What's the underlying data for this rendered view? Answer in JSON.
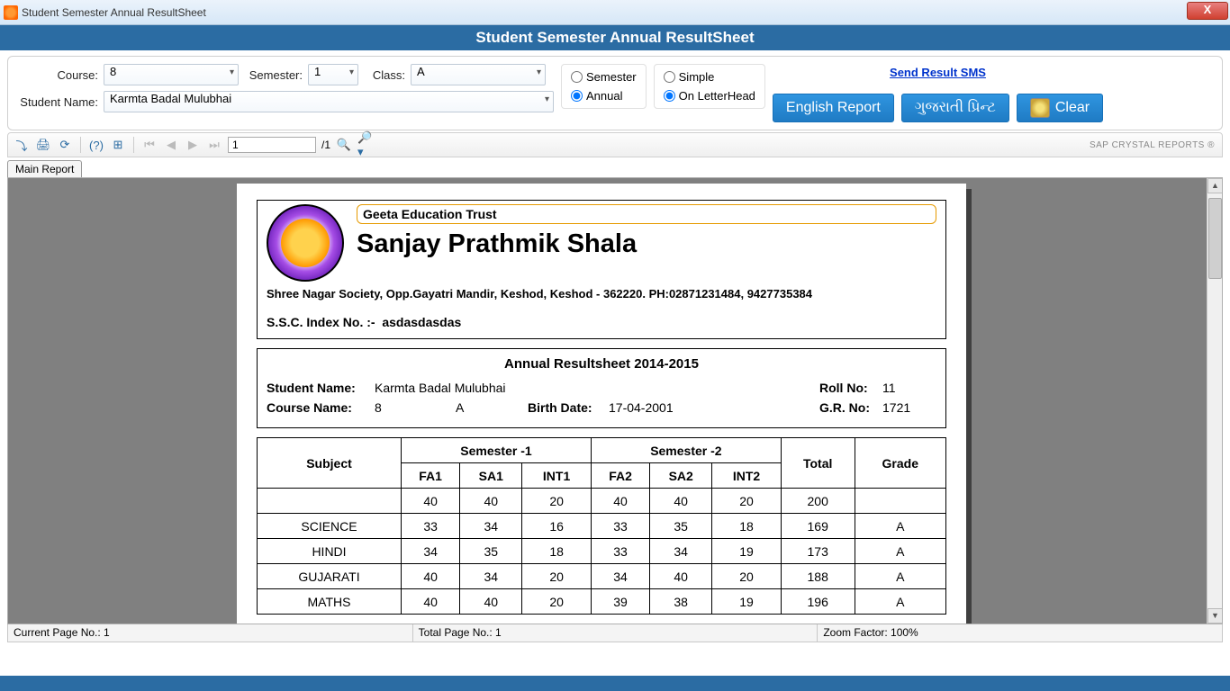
{
  "window": {
    "title": "Student Semester Annual ResultSheet"
  },
  "header": {
    "title": "Student Semester Annual ResultSheet"
  },
  "filters": {
    "course_label": "Course:",
    "course_value": "8",
    "semester_label": "Semester:",
    "semester_value": "1",
    "class_label": "Class:",
    "class_value": "A",
    "student_label": "Student Name:",
    "student_value": "Karmta Badal Mulubhai",
    "period": {
      "semester": "Semester",
      "annual": "Annual",
      "selected": "annual"
    },
    "format": {
      "simple": "Simple",
      "letterhead": "On LetterHead",
      "selected": "letterhead"
    }
  },
  "links": {
    "sms": "Send Result SMS"
  },
  "buttons": {
    "english": "English Report",
    "gujarati": "ગુજરાતી પ્રિન્ટ",
    "clear": "Clear"
  },
  "toolbar": {
    "page_current": "1",
    "page_sep": "/1",
    "sap": "SAP CRYSTAL REPORTS ®",
    "tab": "Main Report"
  },
  "report": {
    "trust": "Geeta Education Trust",
    "school": "Sanjay Prathmik Shala",
    "address": "Shree Nagar Society,  Opp.Gayatri Mandir, Keshod, Keshod - 362220. PH:02871231484, 9427735384",
    "ssc_label": "S.S.C. Index No. :-",
    "ssc_value": "asdasdasdas",
    "sheet_title": "Annual Resultsheet  2014-2015",
    "student_name_lbl": "Student Name:",
    "student_name": "Karmta Badal Mulubhai",
    "roll_lbl": "Roll No:",
    "roll": "11",
    "course_lbl": "Course Name:",
    "course": "8",
    "class": "A",
    "birth_lbl": "Birth Date:",
    "birth": "17-04-2001",
    "gr_lbl": "G.R. No:",
    "gr": "1721",
    "table": {
      "headers": {
        "subject": "Subject",
        "sem1": "Semester -1",
        "sem2": "Semester -2",
        "fa1": "FA1",
        "sa1": "SA1",
        "int1": "INT1",
        "fa2": "FA2",
        "sa2": "SA2",
        "int2": "INT2",
        "total": "Total",
        "grade": "Grade"
      },
      "max_row": [
        "",
        "40",
        "40",
        "20",
        "40",
        "40",
        "20",
        "200",
        ""
      ],
      "rows": [
        [
          "SCIENCE",
          "33",
          "34",
          "16",
          "33",
          "35",
          "18",
          "169",
          "A"
        ],
        [
          "HINDI",
          "34",
          "35",
          "18",
          "33",
          "34",
          "19",
          "173",
          "A"
        ],
        [
          "GUJARATI",
          "40",
          "34",
          "20",
          "34",
          "40",
          "20",
          "188",
          "A"
        ],
        [
          "MATHS",
          "40",
          "40",
          "20",
          "39",
          "38",
          "19",
          "196",
          "A"
        ]
      ]
    }
  },
  "statusbar": {
    "current": "Current Page No.: 1",
    "total": "Total Page No.: 1",
    "zoom": "Zoom Factor: 100%"
  }
}
